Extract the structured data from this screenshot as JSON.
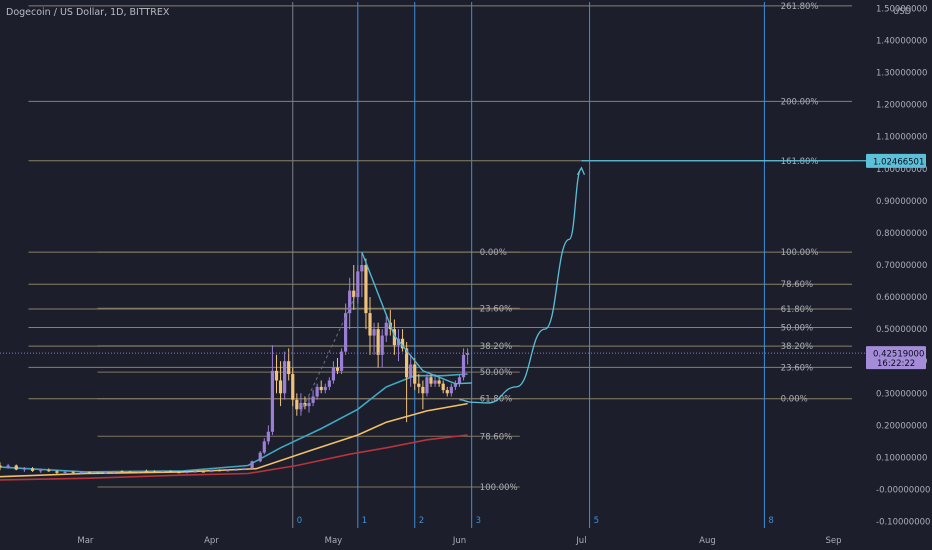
{
  "chart_data": {
    "type": "candlestick",
    "title": "Dogecoin / US Dollar, 1D, BITTREX",
    "currency_label": "USD",
    "y_ticks": [
      "1.50000000",
      "1.40000000",
      "1.30000000",
      "1.20000000",
      "1.10000000",
      "1.00000000",
      "0.90000000",
      "0.80000000",
      "0.70000000",
      "0.60000000",
      "0.50000000",
      "0.40000000",
      "0.30000000",
      "0.20000000",
      "0.10000000",
      "-0.00000000",
      "-0.10000000"
    ],
    "y_tick_values": [
      1.5,
      1.4,
      1.3,
      1.2,
      1.1,
      1.0,
      0.9,
      0.8,
      0.7,
      0.6,
      0.5,
      0.4,
      0.3,
      0.2,
      0.1,
      0.0,
      -0.1
    ],
    "x_ticks": [
      "Mar",
      "Apr",
      "May",
      "Jun",
      "Jul",
      "Aug",
      "Sep"
    ],
    "x_tick_dates": [
      "2021-03-01",
      "2021-04-01",
      "2021-05-01",
      "2021-06-01",
      "2021-07-01",
      "2021-08-01",
      "2021-09-01"
    ],
    "ylim": [
      -0.12,
      1.52
    ],
    "xlim": [
      "2021-02-08",
      "2021-09-08"
    ],
    "current_price": "0.42519000",
    "countdown": "16:22:22",
    "target_price": "1.02466501",
    "target_price_value": 1.02466501,
    "target_date": "2021-07-01",
    "bar_colors": {
      "up": "#9b7fd6",
      "down": "#f0c27a"
    },
    "fib_extension": {
      "color": "#8a8068",
      "start_date": "2021-02-15",
      "label_date": "2021-08-19",
      "levels": [
        {
          "label": "261.80%",
          "value": 1.508
        },
        {
          "label": "200.00%",
          "value": 1.21
        },
        {
          "label": "161.80%",
          "value": 1.025
        },
        {
          "label": "100.00%",
          "value": 0.74
        },
        {
          "label": "78.60%",
          "value": 0.64
        },
        {
          "label": "61.80%",
          "value": 0.563
        },
        {
          "label": "50.00%",
          "value": 0.505
        },
        {
          "label": "38.20%",
          "value": 0.447
        },
        {
          "label": "23.60%",
          "value": 0.381
        },
        {
          "label": "0.00%",
          "value": 0.283
        }
      ]
    },
    "fib_retracement": {
      "color": "#8a8068",
      "start_date": "2021-03-04",
      "label_date": "2021-06-06",
      "levels": [
        {
          "label": "0.00%",
          "value": 0.74
        },
        {
          "label": "23.60%",
          "value": 0.565
        },
        {
          "label": "38.20%",
          "value": 0.448
        },
        {
          "label": "50.00%",
          "value": 0.366
        },
        {
          "label": "61.80%",
          "value": 0.283
        },
        {
          "label": "78.60%",
          "value": 0.166
        },
        {
          "label": "100.00%",
          "value": 0.008
        }
      ]
    },
    "time_cycles": [
      {
        "label": "0",
        "date": "2021-04-21"
      },
      {
        "label": "1",
        "date": "2021-05-07"
      },
      {
        "label": "2",
        "date": "2021-05-21"
      },
      {
        "label": "3",
        "date": "2021-06-04"
      },
      {
        "label": "5",
        "date": "2021-07-03"
      },
      {
        "label": "8",
        "date": "2021-08-15"
      }
    ],
    "projection_curve": [
      {
        "date": "2021-06-01",
        "y": 0.28
      },
      {
        "date": "2021-06-04",
        "y": 0.272
      },
      {
        "date": "2021-06-08",
        "y": 0.27
      },
      {
        "date": "2021-06-15",
        "y": 0.32
      },
      {
        "date": "2021-06-22",
        "y": 0.5
      },
      {
        "date": "2021-06-28",
        "y": 0.78
      },
      {
        "date": "2021-07-01",
        "y": 1.0
      }
    ],
    "target_line": {
      "from_date": "2021-07-01",
      "to_date": "2021-09-08",
      "y": 1.025
    },
    "down_trendline": [
      {
        "date": "2021-05-08",
        "y": 0.74
      },
      {
        "date": "2021-05-16",
        "y": 0.48
      },
      {
        "date": "2021-05-23",
        "y": 0.37
      },
      {
        "date": "2021-05-31",
        "y": 0.33
      },
      {
        "date": "2021-06-04",
        "y": 0.332
      }
    ],
    "dashed_trendline": [
      {
        "date": "2021-04-23",
        "y": 0.24
      },
      {
        "date": "2021-05-07",
        "y": 0.62
      }
    ],
    "moving_averages": [
      {
        "color": "#3fa8c4",
        "points": [
          [
            "2021-02-08",
            0.07
          ],
          [
            "2021-03-01",
            0.055
          ],
          [
            "2021-03-25",
            0.058
          ],
          [
            "2021-04-10",
            0.075
          ],
          [
            "2021-04-18",
            0.13
          ],
          [
            "2021-04-28",
            0.19
          ],
          [
            "2021-05-07",
            0.25
          ],
          [
            "2021-05-14",
            0.32
          ],
          [
            "2021-05-21",
            0.355
          ],
          [
            "2021-05-28",
            0.355
          ],
          [
            "2021-06-03",
            0.36
          ]
        ]
      },
      {
        "color": "#f3c066",
        "points": [
          [
            "2021-02-08",
            0.04
          ],
          [
            "2021-03-01",
            0.05
          ],
          [
            "2021-03-25",
            0.055
          ],
          [
            "2021-04-12",
            0.065
          ],
          [
            "2021-04-25",
            0.12
          ],
          [
            "2021-05-07",
            0.17
          ],
          [
            "2021-05-14",
            0.21
          ],
          [
            "2021-05-24",
            0.245
          ],
          [
            "2021-06-03",
            0.268
          ]
        ]
      },
      {
        "color": "#b8343c",
        "points": [
          [
            "2021-02-08",
            0.03
          ],
          [
            "2021-03-01",
            0.035
          ],
          [
            "2021-03-25",
            0.045
          ],
          [
            "2021-04-10",
            0.05
          ],
          [
            "2021-04-22",
            0.075
          ],
          [
            "2021-05-05",
            0.11
          ],
          [
            "2021-05-14",
            0.13
          ],
          [
            "2021-05-24",
            0.155
          ],
          [
            "2021-06-03",
            0.17
          ]
        ]
      }
    ],
    "candles": [
      [
        "2021-02-08",
        0.075,
        0.085,
        0.06,
        0.07
      ],
      [
        "2021-02-10",
        0.07,
        0.08,
        0.065,
        0.075
      ],
      [
        "2021-02-12",
        0.075,
        0.078,
        0.06,
        0.062
      ],
      [
        "2021-02-14",
        0.062,
        0.07,
        0.055,
        0.066
      ],
      [
        "2021-02-16",
        0.066,
        0.07,
        0.055,
        0.058
      ],
      [
        "2021-02-18",
        0.058,
        0.065,
        0.052,
        0.06
      ],
      [
        "2021-02-20",
        0.06,
        0.066,
        0.055,
        0.057
      ],
      [
        "2021-02-22",
        0.057,
        0.06,
        0.048,
        0.052
      ],
      [
        "2021-02-24",
        0.052,
        0.058,
        0.048,
        0.055
      ],
      [
        "2021-02-26",
        0.055,
        0.058,
        0.05,
        0.053
      ],
      [
        "2021-02-28",
        0.053,
        0.057,
        0.049,
        0.054
      ],
      [
        "2021-03-02",
        0.054,
        0.056,
        0.05,
        0.052
      ],
      [
        "2021-03-04",
        0.052,
        0.055,
        0.049,
        0.051
      ],
      [
        "2021-03-06",
        0.051,
        0.054,
        0.048,
        0.053
      ],
      [
        "2021-03-08",
        0.053,
        0.058,
        0.051,
        0.057
      ],
      [
        "2021-03-10",
        0.057,
        0.06,
        0.054,
        0.056
      ],
      [
        "2021-03-12",
        0.056,
        0.058,
        0.053,
        0.055
      ],
      [
        "2021-03-14",
        0.055,
        0.059,
        0.053,
        0.058
      ],
      [
        "2021-03-16",
        0.058,
        0.062,
        0.055,
        0.057
      ],
      [
        "2021-03-18",
        0.057,
        0.06,
        0.054,
        0.056
      ],
      [
        "2021-03-20",
        0.056,
        0.06,
        0.054,
        0.058
      ],
      [
        "2021-03-22",
        0.058,
        0.06,
        0.053,
        0.054
      ],
      [
        "2021-03-24",
        0.054,
        0.057,
        0.051,
        0.053
      ],
      [
        "2021-03-26",
        0.053,
        0.056,
        0.05,
        0.055
      ],
      [
        "2021-03-28",
        0.055,
        0.058,
        0.053,
        0.056
      ],
      [
        "2021-03-30",
        0.056,
        0.059,
        0.054,
        0.055
      ],
      [
        "2021-04-01",
        0.055,
        0.062,
        0.054,
        0.06
      ],
      [
        "2021-04-03",
        0.06,
        0.063,
        0.057,
        0.058
      ],
      [
        "2021-04-05",
        0.058,
        0.062,
        0.056,
        0.06
      ],
      [
        "2021-04-07",
        0.06,
        0.065,
        0.058,
        0.062
      ],
      [
        "2021-04-09",
        0.062,
        0.068,
        0.06,
        0.066
      ],
      [
        "2021-04-11",
        0.066,
        0.09,
        0.065,
        0.088
      ],
      [
        "2021-04-13",
        0.088,
        0.12,
        0.085,
        0.115
      ],
      [
        "2021-04-14",
        0.115,
        0.16,
        0.11,
        0.15
      ],
      [
        "2021-04-15",
        0.15,
        0.2,
        0.14,
        0.18
      ],
      [
        "2021-04-16",
        0.18,
        0.45,
        0.17,
        0.37
      ],
      [
        "2021-04-17",
        0.37,
        0.42,
        0.3,
        0.34
      ],
      [
        "2021-04-18",
        0.34,
        0.4,
        0.26,
        0.3
      ],
      [
        "2021-04-19",
        0.3,
        0.43,
        0.28,
        0.4
      ],
      [
        "2021-04-20",
        0.4,
        0.44,
        0.34,
        0.36
      ],
      [
        "2021-04-21",
        0.36,
        0.38,
        0.26,
        0.28
      ],
      [
        "2021-04-22",
        0.28,
        0.3,
        0.23,
        0.25
      ],
      [
        "2021-04-23",
        0.25,
        0.3,
        0.23,
        0.27
      ],
      [
        "2021-04-24",
        0.27,
        0.29,
        0.25,
        0.26
      ],
      [
        "2021-04-25",
        0.26,
        0.29,
        0.24,
        0.27
      ],
      [
        "2021-04-26",
        0.27,
        0.31,
        0.26,
        0.29
      ],
      [
        "2021-04-27",
        0.29,
        0.33,
        0.28,
        0.32
      ],
      [
        "2021-04-28",
        0.32,
        0.34,
        0.3,
        0.31
      ],
      [
        "2021-04-29",
        0.31,
        0.33,
        0.3,
        0.32
      ],
      [
        "2021-04-30",
        0.32,
        0.35,
        0.31,
        0.34
      ],
      [
        "2021-05-01",
        0.34,
        0.4,
        0.33,
        0.38
      ],
      [
        "2021-05-02",
        0.38,
        0.41,
        0.36,
        0.37
      ],
      [
        "2021-05-03",
        0.37,
        0.44,
        0.36,
        0.43
      ],
      [
        "2021-05-04",
        0.43,
        0.58,
        0.42,
        0.55
      ],
      [
        "2021-05-05",
        0.55,
        0.66,
        0.5,
        0.62
      ],
      [
        "2021-05-06",
        0.62,
        0.7,
        0.56,
        0.6
      ],
      [
        "2021-05-07",
        0.6,
        0.7,
        0.58,
        0.68
      ],
      [
        "2021-05-08",
        0.68,
        0.74,
        0.6,
        0.7
      ],
      [
        "2021-05-09",
        0.7,
        0.72,
        0.5,
        0.55
      ],
      [
        "2021-05-10",
        0.55,
        0.6,
        0.42,
        0.48
      ],
      [
        "2021-05-11",
        0.48,
        0.52,
        0.42,
        0.5
      ],
      [
        "2021-05-12",
        0.5,
        0.52,
        0.38,
        0.42
      ],
      [
        "2021-05-13",
        0.42,
        0.5,
        0.38,
        0.48
      ],
      [
        "2021-05-14",
        0.48,
        0.54,
        0.46,
        0.52
      ],
      [
        "2021-05-15",
        0.52,
        0.56,
        0.48,
        0.5
      ],
      [
        "2021-05-16",
        0.5,
        0.53,
        0.42,
        0.45
      ],
      [
        "2021-05-17",
        0.45,
        0.5,
        0.4,
        0.47
      ],
      [
        "2021-05-18",
        0.47,
        0.5,
        0.43,
        0.44
      ],
      [
        "2021-05-19",
        0.44,
        0.46,
        0.21,
        0.35
      ],
      [
        "2021-05-20",
        0.35,
        0.42,
        0.32,
        0.39
      ],
      [
        "2021-05-21",
        0.39,
        0.41,
        0.31,
        0.33
      ],
      [
        "2021-05-22",
        0.33,
        0.36,
        0.3,
        0.32
      ],
      [
        "2021-05-23",
        0.32,
        0.34,
        0.25,
        0.3
      ],
      [
        "2021-05-24",
        0.3,
        0.36,
        0.29,
        0.35
      ],
      [
        "2021-05-25",
        0.35,
        0.36,
        0.32,
        0.33
      ],
      [
        "2021-05-26",
        0.33,
        0.36,
        0.32,
        0.34
      ],
      [
        "2021-05-27",
        0.34,
        0.35,
        0.32,
        0.33
      ],
      [
        "2021-05-28",
        0.33,
        0.34,
        0.3,
        0.31
      ],
      [
        "2021-05-29",
        0.31,
        0.32,
        0.29,
        0.3
      ],
      [
        "2021-05-30",
        0.3,
        0.33,
        0.29,
        0.32
      ],
      [
        "2021-05-31",
        0.32,
        0.34,
        0.31,
        0.33
      ],
      [
        "2021-06-01",
        0.33,
        0.36,
        0.32,
        0.35
      ],
      [
        "2021-06-02",
        0.35,
        0.44,
        0.34,
        0.42
      ],
      [
        "2021-06-03",
        0.42,
        0.44,
        0.39,
        0.425
      ]
    ]
  }
}
